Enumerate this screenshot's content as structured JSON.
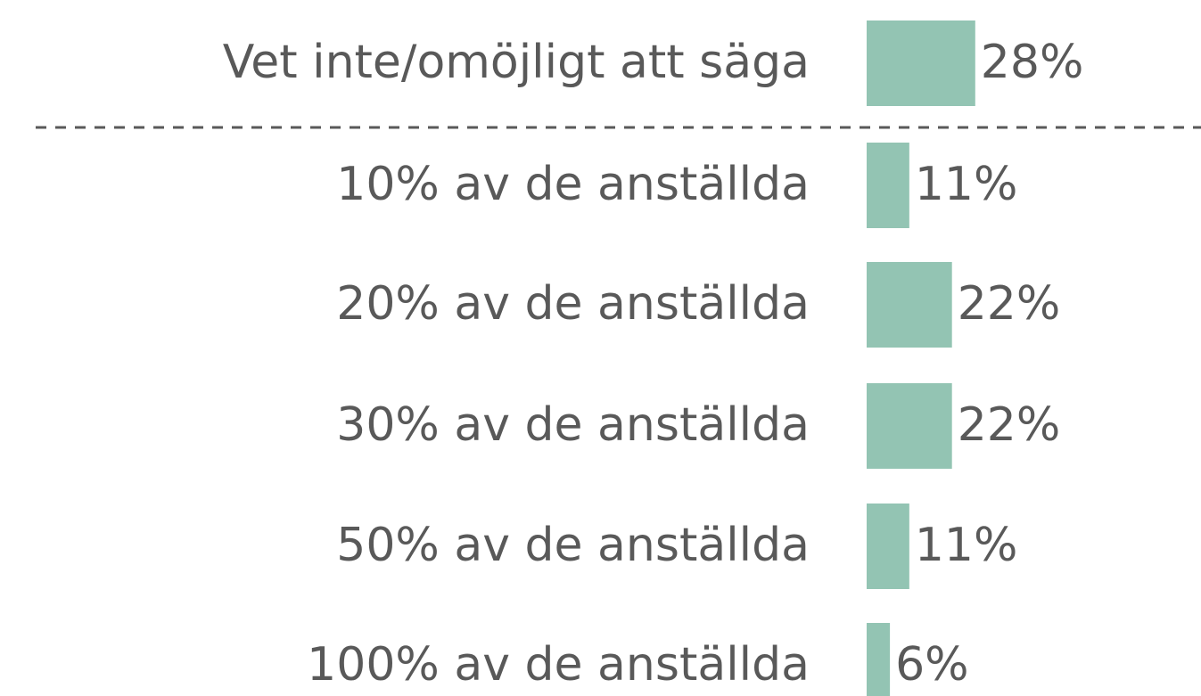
{
  "chart_data": {
    "type": "hbar",
    "categories": [
      "Vet inte/omöjligt att säga",
      "10% av de anställda",
      "20% av de anställda",
      "30% av de anställda",
      "50% av de anställda",
      "100% av de anställda"
    ],
    "values": [
      28,
      11,
      22,
      22,
      11,
      6
    ],
    "value_labels": [
      "28%",
      "11%",
      "22%",
      "22%",
      "11%",
      "6%"
    ],
    "color": "#93c4b3"
  }
}
